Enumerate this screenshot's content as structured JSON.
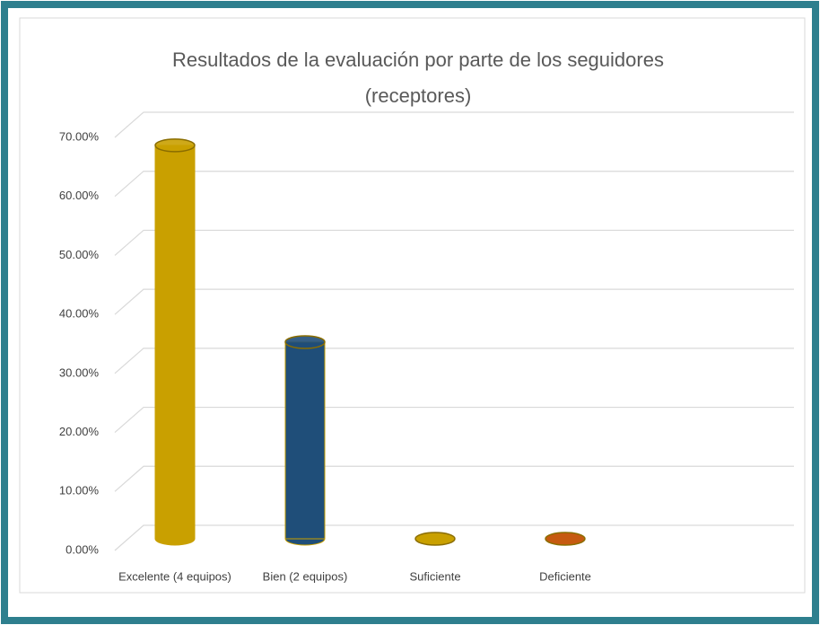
{
  "chart_data": {
    "type": "bar",
    "title": [
      "Resultados de la evaluación por parte de los seguidores",
      "(receptores)"
    ],
    "categories": [
      "Excelente (4 equipos)",
      "Bien (2 equipos)",
      "Suficiente",
      "Deficiente"
    ],
    "values": [
      66.67,
      33.33,
      0,
      0
    ],
    "colors": [
      "#c9a000",
      "#1f4e79",
      "#c9a000",
      "#c55a11"
    ],
    "ylim": [
      0,
      70
    ],
    "yticks": [
      {
        "value": 0,
        "label": "0.00%"
      },
      {
        "value": 10,
        "label": "10.00%"
      },
      {
        "value": 20,
        "label": "20.00%"
      },
      {
        "value": 30,
        "label": "30.00%"
      },
      {
        "value": 40,
        "label": "40.00%"
      },
      {
        "value": 50,
        "label": "50.00%"
      },
      {
        "value": 60,
        "label": "60.00%"
      },
      {
        "value": 70,
        "label": "70.00%"
      }
    ],
    "grid": true
  }
}
